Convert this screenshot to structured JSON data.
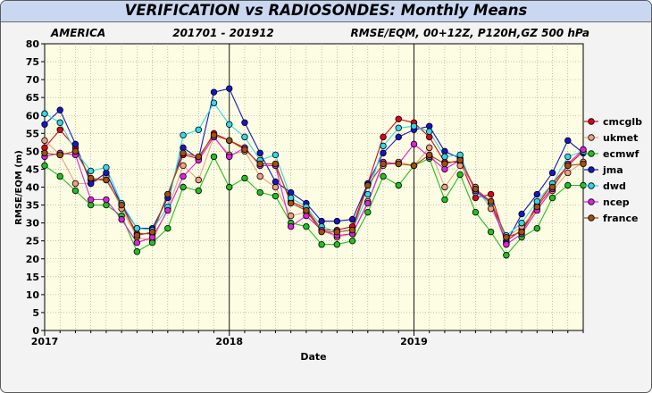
{
  "title": "VERIFICATION vs RADIOSONDES: Monthly Means",
  "subtitle_left": "AMERICA",
  "subtitle_center": "201701 - 201912",
  "subtitle_right": "RMSE/EQM, 00+12Z,  P120H,GZ 500 hPa",
  "chart_data": {
    "type": "line",
    "title": "VERIFICATION vs RADIOSONDES: Monthly Means",
    "xlabel": "Date",
    "ylabel": "RMSE/EQM (m)",
    "ylim": [
      0,
      80
    ],
    "yticks": [
      0,
      5,
      10,
      15,
      20,
      25,
      30,
      35,
      40,
      45,
      50,
      55,
      60,
      65,
      70,
      75,
      80
    ],
    "xtick_labels": [
      "2017",
      "2018",
      "2019"
    ],
    "x": [
      "2017-01",
      "2017-02",
      "2017-03",
      "2017-04",
      "2017-05",
      "2017-06",
      "2017-07",
      "2017-08",
      "2017-09",
      "2017-10",
      "2017-11",
      "2017-12",
      "2018-01",
      "2018-02",
      "2018-03",
      "2018-04",
      "2018-05",
      "2018-06",
      "2018-07",
      "2018-08",
      "2018-09",
      "2018-10",
      "2018-11",
      "2018-12",
      "2019-01",
      "2019-02",
      "2019-03",
      "2019-04",
      "2019-05",
      "2019-06",
      "2019-07",
      "2019-08",
      "2019-09",
      "2019-10",
      "2019-11",
      "2019-12"
    ],
    "grid": true,
    "legend_position": "right",
    "series": [
      {
        "name": "cmcglb",
        "color": "#e0001a",
        "values": [
          51,
          56,
          51,
          42,
          42,
          35,
          27,
          27,
          38,
          49,
          48,
          55,
          53,
          51,
          46,
          46,
          36,
          34,
          28,
          28,
          29,
          41,
          54,
          59,
          58,
          54,
          47,
          47,
          37,
          38,
          25,
          28,
          35,
          41,
          46,
          50
        ]
      },
      {
        "name": "ukmet",
        "color": "#f0a080",
        "values": [
          53,
          49,
          41,
          41,
          43,
          34,
          26,
          25,
          34,
          46,
          42,
          54,
          49,
          50,
          43,
          40,
          32,
          33,
          28,
          26,
          27,
          36,
          46,
          47,
          46,
          51,
          40,
          46,
          40,
          34,
          26,
          29,
          34,
          39,
          44,
          47
        ]
      },
      {
        "name": "ecmwf",
        "color": "#20c020",
        "values": [
          46,
          43,
          39,
          35,
          35,
          32,
          22,
          24.5,
          28.5,
          40,
          39,
          48.5,
          40,
          42.5,
          38.5,
          37.5,
          30,
          29,
          24,
          24,
          25,
          33,
          43,
          40.5,
          46,
          48,
          36.5,
          43.5,
          33,
          27.5,
          21,
          26,
          28.5,
          37,
          40.5,
          40.5
        ]
      },
      {
        "name": "jma",
        "color": "#1515c8",
        "values": [
          57.5,
          61.5,
          52,
          41,
          44,
          35,
          28.5,
          28.5,
          37,
          51,
          48,
          66.5,
          67.5,
          58,
          49.5,
          41.5,
          38.5,
          35.5,
          30.5,
          30.5,
          31,
          41,
          49.5,
          54,
          56,
          57,
          50,
          48,
          39,
          35.5,
          24.5,
          32.5,
          38,
          44,
          53,
          49.5
        ]
      },
      {
        "name": "dwd",
        "color": "#30d8e8",
        "values": [
          60.5,
          58,
          50,
          44.5,
          45.5,
          35.5,
          28.5,
          28,
          34.5,
          54.5,
          56,
          63.5,
          57.5,
          54,
          47.5,
          49,
          37,
          34.5,
          29,
          27.5,
          28,
          38,
          51.5,
          56.5,
          57,
          55.5,
          48.5,
          49,
          38.5,
          35.5,
          26.5,
          30,
          36,
          41,
          48.5,
          50
        ]
      },
      {
        "name": "ncep",
        "color": "#e020e0",
        "values": [
          48.5,
          49.5,
          49,
          36.5,
          36.5,
          31,
          24.5,
          26,
          33.5,
          43,
          47.5,
          54,
          48.5,
          51,
          46,
          46,
          29,
          32,
          28,
          26.5,
          27,
          35.5,
          47,
          46.5,
          52,
          48.5,
          45,
          47.5,
          39,
          36,
          24,
          27,
          33.5,
          39.5,
          46.5,
          50.5
        ]
      },
      {
        "name": "france",
        "color": "#a05010",
        "values": [
          49.5,
          49,
          50,
          42.5,
          42,
          35,
          26.5,
          27.5,
          38,
          49.5,
          48.5,
          54.5,
          53,
          50.5,
          46.5,
          46.5,
          35.5,
          33.5,
          27.5,
          27.5,
          28,
          40.5,
          46.5,
          46.5,
          46,
          49,
          46.5,
          47.5,
          39.5,
          36,
          26,
          27.5,
          34.5,
          40,
          46,
          46.5
        ]
      }
    ]
  }
}
